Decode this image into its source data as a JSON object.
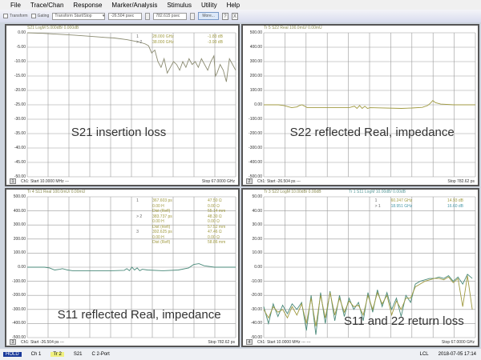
{
  "menu": [
    "File",
    "Trace/Chan",
    "Response",
    "Marker/Analysis",
    "Stimulus",
    "Utility",
    "Help"
  ],
  "toolbar": {
    "transform": "Transform",
    "gating": "Gating",
    "mode": "Transform Start/Stop",
    "start": "-26.504 psec",
    "stop": "782.615 psec",
    "more": "More...",
    "help": "?",
    "close": "X"
  },
  "colors": {
    "trace_s21": "#8a8a70",
    "trace_s11": "#4a8a7a",
    "trace_s22": "#a09a40",
    "grid": "#9a9a9a",
    "marker_text": "#a09a40",
    "marker_text_s11": "#4a9aaa"
  },
  "panels": [
    {
      "num": "1",
      "title": "S21 LogM 5.000dB/ 0.000dB",
      "tag": "Tr 2",
      "foot_start": "Ch1: Start  10.0000 MHz ---",
      "foot_stop": "Stop  67.0000 GHz",
      "caption": "S21 insertion loss",
      "yticks": [
        "0.00",
        "-5.00",
        "-10.00",
        "-15.00",
        "-20.00",
        "-25.00",
        "-30.00",
        "-35.00",
        "-40.00",
        "-45.00",
        "-50.00"
      ],
      "markers": [
        [
          "1",
          "28.000 GHz",
          "-1.83 dB"
        ],
        [
          "> 2",
          "38.000 GHz",
          "-3.93 dB"
        ]
      ]
    },
    {
      "num": "2",
      "title": "Tr 5  S22 Real 100.0mU/ 0.00mU",
      "foot_start": "Ch1: Start  -26.504 ps ---",
      "foot_stop": "Stop  782.62 ps",
      "caption": "S22 reflected Real, impedance",
      "yticks": [
        "500.00",
        "400.00",
        "300.00",
        "200.00",
        "100.00",
        "0.00",
        "-100.00",
        "-200.00",
        "-300.00",
        "-400.00",
        "-500.00"
      ],
      "markers": []
    },
    {
      "num": "3",
      "title": "Tr 4  S11 Real 100.0mU/ 0.00mU",
      "foot_start": "Ch1: Start  -26.504 ps ---",
      "foot_stop": "Stop  782.62 ps",
      "caption": "S11 reflected Real, impedance",
      "yticks": [
        "500.00",
        "400.00",
        "300.00",
        "200.00",
        "100.00",
        "0.00",
        "-100.00",
        "-200.00",
        "-300.00",
        "-400.00",
        "-500.00"
      ],
      "markers": [
        [
          "1",
          "367.603 ps",
          "47.50 Ω"
        ],
        [
          "",
          "0.00 H",
          "0.00 Ω"
        ],
        [
          "",
          "Dist (Refl)",
          "55.14 mm"
        ],
        [
          "> 2",
          "383.737 ps",
          "48.30 Ω"
        ],
        [
          "",
          "0.00 H",
          "0.00 Ω"
        ],
        [
          "",
          "Dist (Refl)",
          "57.52 mm"
        ],
        [
          "3",
          "392.625 ps",
          "47.46 Ω"
        ],
        [
          "",
          "0.00 H",
          "0.00 Ω"
        ],
        [
          "",
          "Dist (Refl)",
          "58.86 mm"
        ]
      ]
    },
    {
      "num": "4",
      "title": "Tr 3  S22 LogM 10.00dB/ 0.00dB",
      "title2": "Tr 1  S11 LogM 10.00dB/ 0.00dB",
      "foot_start": "Ch1: Start  10.0000 MHz --- ---",
      "foot_stop": "Stop  67.0000 GHz",
      "caption": "S11 and 22 return loss",
      "yticks": [
        "50.00",
        "40.00",
        "30.00",
        "20.00",
        "10.00",
        "0.00",
        "-10.00",
        "-20.00",
        "-30.00",
        "-40.00",
        "-50.00"
      ],
      "markers": [
        [
          "1",
          "60.247 GHz",
          "14.93 dB"
        ],
        [
          "> 1",
          "18.951 GHz",
          "16.60 dB"
        ]
      ]
    }
  ],
  "status": {
    "hold": "HOLD",
    "channel": "Ch 1",
    "trace": "Tr 2",
    "param": "S21",
    "cal": "C  2-Port",
    "lcl": "LCL",
    "datetime": "2018-07-05 17:14"
  },
  "chart_data": [
    {
      "type": "line",
      "panel": "1",
      "xlim": [
        0.01,
        67
      ],
      "ylim": [
        -50,
        0
      ],
      "grid": true,
      "series": [
        {
          "name": "S21",
          "x": [
            0,
            5,
            10,
            15,
            20,
            25,
            28,
            32,
            36,
            38,
            39,
            40,
            41,
            42,
            43,
            44,
            45,
            46,
            47,
            48,
            49,
            50,
            51,
            52,
            53,
            54,
            55,
            56,
            57,
            58,
            59,
            60,
            60.5,
            61,
            62,
            63,
            64,
            65,
            66,
            67
          ],
          "y": [
            0,
            -0.2,
            -0.5,
            -0.8,
            -1.2,
            -1.6,
            -1.8,
            -2.4,
            -3.2,
            -3.9,
            -4.5,
            -7,
            -6,
            -10,
            -12,
            -9,
            -14,
            -12,
            -10,
            -11,
            -13,
            -10,
            -12,
            -9,
            -11,
            -10,
            -12,
            -9,
            -11,
            -13,
            -10,
            -8,
            -15,
            -14,
            -11,
            -13,
            -17,
            -9,
            -11,
            -13
          ]
        }
      ]
    },
    {
      "type": "line",
      "panel": "2",
      "xlim": [
        -26.504,
        782.62
      ],
      "ylim": [
        -500,
        500
      ],
      "grid": true,
      "series": [
        {
          "name": "S22",
          "x": [
            -26.5,
            0,
            30,
            50,
            80,
            100,
            110,
            120,
            140,
            300,
            320,
            330,
            340,
            350,
            360,
            370,
            380,
            500,
            540,
            580,
            600,
            610,
            620,
            630,
            650,
            700,
            782.6
          ],
          "y": [
            0,
            0,
            0,
            -5,
            -20,
            -15,
            -5,
            0,
            -20,
            -20,
            -10,
            -25,
            -5,
            -25,
            -10,
            -25,
            -20,
            -25,
            -22,
            -18,
            -5,
            10,
            30,
            15,
            5,
            0,
            0
          ]
        }
      ]
    },
    {
      "type": "line",
      "panel": "3",
      "xlim": [
        -26.504,
        782.62
      ],
      "ylim": [
        -500,
        500
      ],
      "grid": true,
      "series": [
        {
          "name": "S11",
          "x": [
            -26.5,
            0,
            40,
            60,
            80,
            100,
            110,
            130,
            150,
            200,
            300,
            350,
            360,
            370,
            380,
            390,
            400,
            410,
            420,
            440,
            500,
            560,
            600,
            620,
            640,
            660,
            700,
            782.6
          ],
          "y": [
            0,
            0,
            0,
            -5,
            -20,
            -15,
            -10,
            -20,
            -25,
            -25,
            -25,
            -22,
            -10,
            -25,
            0,
            -20,
            -5,
            -25,
            -15,
            -20,
            -25,
            -20,
            -5,
            20,
            25,
            10,
            0,
            0
          ]
        }
      ]
    },
    {
      "type": "line",
      "panel": "4",
      "xlim": [
        0.01,
        67
      ],
      "ylim": [
        -50,
        50
      ],
      "grid": true,
      "series": [
        {
          "name": "S11",
          "x": [
            0,
            1.5,
            3,
            4.5,
            6,
            7.5,
            9,
            10.5,
            12,
            13.5,
            15,
            16.5,
            18,
            19.5,
            21,
            22.5,
            24,
            25.5,
            27,
            28.5,
            30,
            31.5,
            33,
            34.5,
            36,
            37.5,
            39,
            40.5,
            42,
            43.5,
            45,
            46.5,
            48,
            49.5,
            51,
            52.5,
            54,
            55.5,
            57,
            58.5,
            60,
            61.5,
            63,
            64.5,
            66
          ],
          "y": [
            -28,
            -40,
            -26,
            -35,
            -27,
            -33,
            -26,
            -30,
            -25,
            -45,
            -20,
            -48,
            -18,
            -40,
            -17,
            -38,
            -20,
            -35,
            -22,
            -30,
            -25,
            -38,
            -18,
            -32,
            -16,
            -28,
            -18,
            -30,
            -22,
            -35,
            -20,
            -25,
            -12,
            -10,
            -9,
            -8,
            -8,
            -7,
            -8,
            -6,
            -10,
            -7,
            -12,
            -5,
            -8
          ]
        },
        {
          "name": "S22",
          "x": [
            0,
            1.5,
            3,
            4.5,
            6,
            7.5,
            9,
            10.5,
            12,
            13.5,
            15,
            16.5,
            18,
            19.5,
            21,
            22.5,
            24,
            25.5,
            27,
            28.5,
            30,
            31.5,
            33,
            34.5,
            36,
            37.5,
            39,
            40.5,
            42,
            43.5,
            45,
            46.5,
            48,
            49.5,
            51,
            52.5,
            54,
            55.5,
            57,
            58.5,
            60,
            61.5,
            63,
            64.5,
            66
          ],
          "y": [
            -30,
            -36,
            -28,
            -32,
            -30,
            -36,
            -28,
            -34,
            -26,
            -40,
            -22,
            -42,
            -20,
            -36,
            -18,
            -34,
            -22,
            -32,
            -24,
            -28,
            -27,
            -34,
            -20,
            -30,
            -18,
            -26,
            -20,
            -34,
            -24,
            -30,
            -22,
            -22,
            -14,
            -12,
            -10,
            -9,
            -8,
            -8,
            -9,
            -7,
            -11,
            -8,
            -28,
            -6,
            -30
          ]
        }
      ]
    }
  ]
}
